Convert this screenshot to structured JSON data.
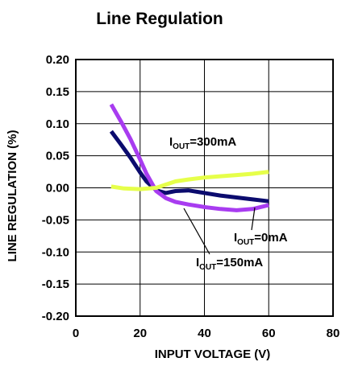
{
  "chart_data": {
    "type": "line",
    "title": "Line Regulation",
    "xlabel": "INPUT VOLTAGE (V)",
    "ylabel": "LINE REGULATION (%)",
    "xlim": [
      0,
      80
    ],
    "ylim": [
      -0.2,
      0.2
    ],
    "x_ticks": [
      "0",
      "20",
      "40",
      "60",
      "80"
    ],
    "y_ticks": [
      "0.20",
      "0.15",
      "0.10",
      "0.05",
      "0.00",
      "-0.05",
      "-0.10",
      "-0.15",
      "-0.20"
    ],
    "grid": true,
    "series": [
      {
        "name_main": "I",
        "name_sub": "OUT",
        "name_tail": "=0mA",
        "color": "#0b0b6e",
        "x": [
          11,
          14,
          17,
          20,
          22,
          25,
          28,
          31,
          35,
          40,
          45,
          50,
          55,
          60
        ],
        "y": [
          0.088,
          0.068,
          0.047,
          0.024,
          0.01,
          -0.004,
          -0.008,
          -0.005,
          -0.004,
          -0.008,
          -0.012,
          -0.015,
          -0.018,
          -0.021
        ]
      },
      {
        "name_main": "I",
        "name_sub": "OUT",
        "name_tail": "=150mA",
        "color": "#a83cf0",
        "x": [
          11,
          14,
          17,
          20,
          22,
          25,
          28,
          31,
          35,
          40,
          45,
          50,
          55,
          60
        ],
        "y": [
          0.13,
          0.104,
          0.076,
          0.044,
          0.022,
          -0.005,
          -0.016,
          -0.022,
          -0.026,
          -0.03,
          -0.033,
          -0.035,
          -0.033,
          -0.027
        ]
      },
      {
        "name_main": "I",
        "name_sub": "OUT",
        "name_tail": "=300mA",
        "color": "#e6ff4a",
        "x": [
          11,
          15,
          20,
          25,
          28,
          31,
          35,
          40,
          45,
          50,
          55,
          60
        ],
        "y": [
          0.002,
          -0.001,
          -0.002,
          0.0,
          0.005,
          0.01,
          0.013,
          0.016,
          0.018,
          0.02,
          0.022,
          0.025
        ]
      }
    ]
  }
}
